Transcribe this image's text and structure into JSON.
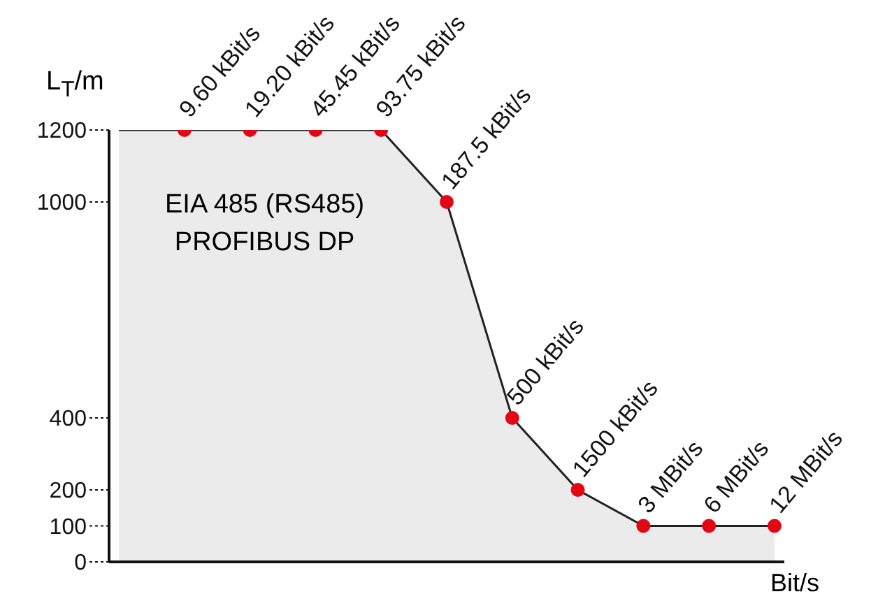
{
  "chart_data": {
    "type": "area",
    "ylabel": "L$_{T}$/m",
    "xlabel": "Bit/s",
    "categories": [
      null,
      null,
      null,
      null,
      null,
      null,
      null,
      null,
      null,
      null,
      null
    ],
    "series": [
      {
        "color": "#ebebeb",
        "values": [
          1200,
          1200,
          1200,
          1200,
          1200,
          1000,
          400,
          200,
          100,
          100,
          100
        ]
      },
      {
        "type": "scatter",
        "color": "#e30613",
        "values": [
          null,
          1200,
          1200,
          1200,
          1200,
          1000,
          400,
          200,
          100,
          100,
          100
        ]
      }
    ],
    "ylim": [
      0,
      1200
    ],
    "yticks": [
      0,
      100,
      200,
      400,
      1000,
      1200
    ],
    "tick_labels": "y",
    "legend": false,
    "annotations": [
      "EIA 485 (RS485)\nPROFIBUS DP",
      "9.60 kBit/s",
      "19.20 kBit/s",
      "45.45 kBit/s",
      "93.75 kBit/s",
      "187.5 kBit/s",
      "500 kBit/s",
      "1500 kBit/s",
      "3 MBit/s",
      "6 MBit/s",
      "12 MBit/s"
    ]
  }
}
